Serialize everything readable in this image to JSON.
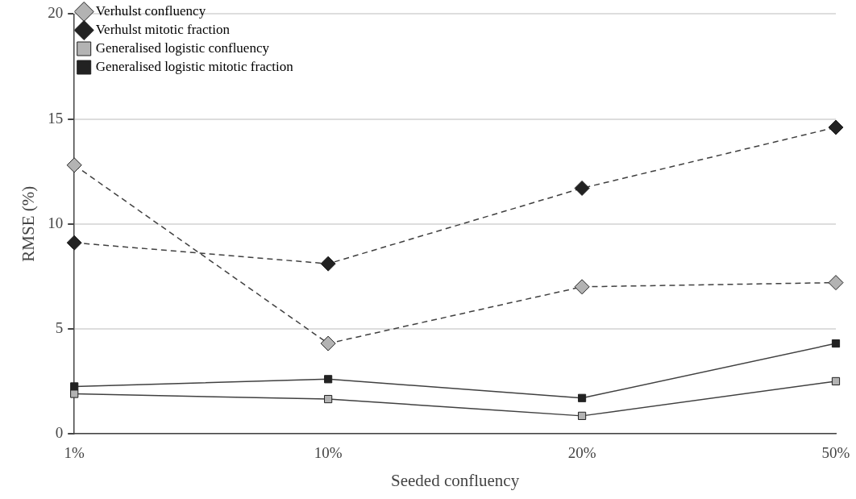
{
  "chart_data": {
    "type": "line",
    "xlabel": "Seeded confluency",
    "ylabel": "RMSE (%)",
    "categories": [
      "1%",
      "10%",
      "20%",
      "50%"
    ],
    "ylim": [
      0,
      20
    ],
    "yticks": [
      0,
      5,
      10,
      15,
      20
    ],
    "grid": "y",
    "legend": "top left",
    "series": [
      {
        "name": "Verhulst confluency",
        "color": "#b3b3b3",
        "marker": "diamond",
        "line_style": "dashed",
        "values": [
          12.8,
          4.3,
          7.0,
          7.2
        ]
      },
      {
        "name": "Verhulst mitotic fraction",
        "color": "#222222",
        "marker": "diamond",
        "line_style": "dashed",
        "values": [
          9.1,
          8.1,
          11.7,
          14.6
        ]
      },
      {
        "name": "Generalised logistic confluency",
        "color": "#b3b3b3",
        "marker": "square",
        "line_style": "solid",
        "values": [
          1.9,
          1.65,
          0.85,
          2.5
        ]
      },
      {
        "name": "Generalised logistic mitotic fraction",
        "color": "#222222",
        "marker": "square",
        "line_style": "solid",
        "values": [
          2.25,
          2.6,
          1.7,
          4.3
        ]
      }
    ]
  }
}
